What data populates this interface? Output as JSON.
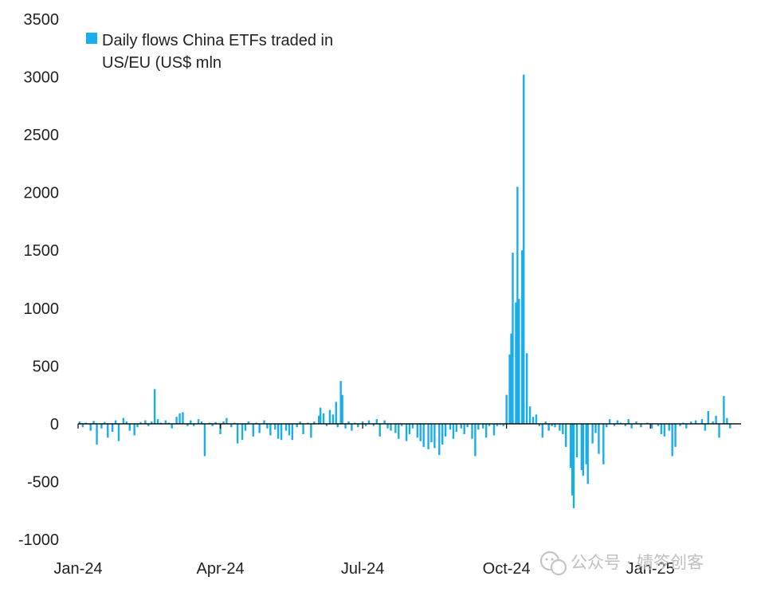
{
  "chart_data": {
    "type": "bar",
    "title": "",
    "xlabel": "",
    "ylabel": "",
    "ylim": [
      -1000,
      3500
    ],
    "y_ticks": [
      -1000,
      -500,
      0,
      500,
      1000,
      1500,
      2000,
      2500,
      3000,
      3500
    ],
    "y_tick_labels": [
      "-1000",
      "-500",
      "0",
      "500",
      "1000",
      "1500",
      "2000",
      "2500",
      "3000",
      "3500"
    ],
    "x_range": [
      "2024-01-01",
      "2025-02-28"
    ],
    "x_ticks": [
      {
        "label": "Jan-24",
        "date": "2024-01-01"
      },
      {
        "label": "Apr-24",
        "date": "2024-04-01"
      },
      {
        "label": "Jul-24",
        "date": "2024-07-01"
      },
      {
        "label": "Oct-24",
        "date": "2024-10-01"
      },
      {
        "label": "Jan-25",
        "date": "2025-01-01"
      }
    ],
    "grid": false,
    "legend": {
      "position": "top-left"
    },
    "series": [
      {
        "name": "Daily flows China ETFs traded in US/EU (US$ mln",
        "color": "#1aaee8",
        "points": [
          [
            "2024-01-02",
            20
          ],
          [
            "2024-01-04",
            -30
          ],
          [
            "2024-01-06",
            10
          ],
          [
            "2024-01-09",
            -60
          ],
          [
            "2024-01-11",
            25
          ],
          [
            "2024-01-13",
            -180
          ],
          [
            "2024-01-16",
            -40
          ],
          [
            "2024-01-18",
            15
          ],
          [
            "2024-01-20",
            -120
          ],
          [
            "2024-01-23",
            -70
          ],
          [
            "2024-01-25",
            30
          ],
          [
            "2024-01-27",
            -150
          ],
          [
            "2024-01-30",
            50
          ],
          [
            "2024-02-01",
            20
          ],
          [
            "2024-02-03",
            -60
          ],
          [
            "2024-02-06",
            -100
          ],
          [
            "2024-02-08",
            -30
          ],
          [
            "2024-02-10",
            15
          ],
          [
            "2024-02-13",
            30
          ],
          [
            "2024-02-15",
            -20
          ],
          [
            "2024-02-17",
            20
          ],
          [
            "2024-02-19",
            300
          ],
          [
            "2024-02-21",
            40
          ],
          [
            "2024-02-23",
            10
          ],
          [
            "2024-02-26",
            30
          ],
          [
            "2024-02-28",
            10
          ],
          [
            "2024-03-01",
            -40
          ],
          [
            "2024-03-04",
            60
          ],
          [
            "2024-03-06",
            90
          ],
          [
            "2024-03-08",
            100
          ],
          [
            "2024-03-11",
            -20
          ],
          [
            "2024-03-13",
            30
          ],
          [
            "2024-03-15",
            -20
          ],
          [
            "2024-03-18",
            40
          ],
          [
            "2024-03-20",
            20
          ],
          [
            "2024-03-22",
            -280
          ],
          [
            "2024-03-25",
            10
          ],
          [
            "2024-03-27",
            -20
          ],
          [
            "2024-03-29",
            15
          ],
          [
            "2024-04-01",
            -90
          ],
          [
            "2024-04-03",
            20
          ],
          [
            "2024-04-05",
            50
          ],
          [
            "2024-04-08",
            -30
          ],
          [
            "2024-04-10",
            10
          ],
          [
            "2024-04-12",
            -170
          ],
          [
            "2024-04-15",
            -140
          ],
          [
            "2024-04-17",
            -60
          ],
          [
            "2024-04-19",
            20
          ],
          [
            "2024-04-22",
            -110
          ],
          [
            "2024-04-24",
            10
          ],
          [
            "2024-04-26",
            -80
          ],
          [
            "2024-04-29",
            30
          ],
          [
            "2024-05-01",
            -40
          ],
          [
            "2024-05-03",
            -100
          ],
          [
            "2024-05-06",
            -50
          ],
          [
            "2024-05-08",
            -130
          ],
          [
            "2024-05-10",
            -140
          ],
          [
            "2024-05-13",
            -60
          ],
          [
            "2024-05-15",
            -100
          ],
          [
            "2024-05-17",
            -140
          ],
          [
            "2024-05-20",
            -30
          ],
          [
            "2024-05-22",
            20
          ],
          [
            "2024-05-24",
            -90
          ],
          [
            "2024-05-27",
            10
          ],
          [
            "2024-05-29",
            -120
          ],
          [
            "2024-05-31",
            20
          ],
          [
            "2024-06-03",
            70
          ],
          [
            "2024-06-04",
            140
          ],
          [
            "2024-06-06",
            90
          ],
          [
            "2024-06-08",
            -20
          ],
          [
            "2024-06-10",
            120
          ],
          [
            "2024-06-12",
            80
          ],
          [
            "2024-06-14",
            190
          ],
          [
            "2024-06-15",
            -30
          ],
          [
            "2024-06-17",
            370
          ],
          [
            "2024-06-18",
            250
          ],
          [
            "2024-06-20",
            -40
          ],
          [
            "2024-06-22",
            20
          ],
          [
            "2024-06-24",
            -60
          ],
          [
            "2024-06-26",
            10
          ],
          [
            "2024-06-28",
            -30
          ],
          [
            "2024-07-01",
            20
          ],
          [
            "2024-07-03",
            -20
          ],
          [
            "2024-07-05",
            30
          ],
          [
            "2024-07-08",
            -20
          ],
          [
            "2024-07-10",
            40
          ],
          [
            "2024-07-12",
            -110
          ],
          [
            "2024-07-15",
            30
          ],
          [
            "2024-07-17",
            -40
          ],
          [
            "2024-07-19",
            -60
          ],
          [
            "2024-07-22",
            -80
          ],
          [
            "2024-07-24",
            -130
          ],
          [
            "2024-07-26",
            -20
          ],
          [
            "2024-07-29",
            -150
          ],
          [
            "2024-07-31",
            -90
          ],
          [
            "2024-08-02",
            -40
          ],
          [
            "2024-08-05",
            -120
          ],
          [
            "2024-08-07",
            -150
          ],
          [
            "2024-08-09",
            -200
          ],
          [
            "2024-08-12",
            -220
          ],
          [
            "2024-08-14",
            -160
          ],
          [
            "2024-08-16",
            -210
          ],
          [
            "2024-08-19",
            -270
          ],
          [
            "2024-08-21",
            -180
          ],
          [
            "2024-08-23",
            -110
          ],
          [
            "2024-08-26",
            -50
          ],
          [
            "2024-08-28",
            -130
          ],
          [
            "2024-08-30",
            -70
          ],
          [
            "2024-09-02",
            -40
          ],
          [
            "2024-09-04",
            -90
          ],
          [
            "2024-09-06",
            -30
          ],
          [
            "2024-09-09",
            -130
          ],
          [
            "2024-09-11",
            -280
          ],
          [
            "2024-09-13",
            -50
          ],
          [
            "2024-09-16",
            -40
          ],
          [
            "2024-09-18",
            -120
          ],
          [
            "2024-09-20",
            -20
          ],
          [
            "2024-09-23",
            -100
          ],
          [
            "2024-09-25",
            -20
          ],
          [
            "2024-09-27",
            -10
          ],
          [
            "2024-09-29",
            -20
          ],
          [
            "2024-10-01",
            250
          ],
          [
            "2024-10-03",
            600
          ],
          [
            "2024-10-04",
            780
          ],
          [
            "2024-10-05",
            1480
          ],
          [
            "2024-10-07",
            1050
          ],
          [
            "2024-10-08",
            2050
          ],
          [
            "2024-10-09",
            1080
          ],
          [
            "2024-10-11",
            1500
          ],
          [
            "2024-10-12",
            3020
          ],
          [
            "2024-10-14",
            610
          ],
          [
            "2024-10-16",
            150
          ],
          [
            "2024-10-18",
            60
          ],
          [
            "2024-10-20",
            80
          ],
          [
            "2024-10-22",
            -20
          ],
          [
            "2024-10-24",
            -120
          ],
          [
            "2024-10-26",
            20
          ],
          [
            "2024-10-28",
            -60
          ],
          [
            "2024-10-30",
            -20
          ],
          [
            "2024-11-01",
            -30
          ],
          [
            "2024-11-04",
            -60
          ],
          [
            "2024-11-06",
            -90
          ],
          [
            "2024-11-08",
            -200
          ],
          [
            "2024-11-11",
            -380
          ],
          [
            "2024-11-12",
            -620
          ],
          [
            "2024-11-13",
            -730
          ],
          [
            "2024-11-15",
            -290
          ],
          [
            "2024-11-18",
            -400
          ],
          [
            "2024-11-19",
            -450
          ],
          [
            "2024-11-21",
            -350
          ],
          [
            "2024-11-22",
            -520
          ],
          [
            "2024-11-25",
            -170
          ],
          [
            "2024-11-27",
            -80
          ],
          [
            "2024-11-29",
            -260
          ],
          [
            "2024-12-02",
            -350
          ],
          [
            "2024-12-04",
            -30
          ],
          [
            "2024-12-06",
            40
          ],
          [
            "2024-12-09",
            -20
          ],
          [
            "2024-12-11",
            30
          ],
          [
            "2024-12-13",
            10
          ],
          [
            "2024-12-16",
            -20
          ],
          [
            "2024-12-18",
            40
          ],
          [
            "2024-12-20",
            -40
          ],
          [
            "2024-12-23",
            20
          ],
          [
            "2024-12-26",
            -30
          ],
          [
            "2024-12-30",
            10
          ],
          [
            "2025-01-02",
            -40
          ],
          [
            "2025-01-06",
            -20
          ],
          [
            "2025-01-08",
            -90
          ],
          [
            "2025-01-10",
            -110
          ],
          [
            "2025-01-13",
            -60
          ],
          [
            "2025-01-15",
            -280
          ],
          [
            "2025-01-17",
            -200
          ],
          [
            "2025-01-20",
            -20
          ],
          [
            "2025-01-22",
            10
          ],
          [
            "2025-01-24",
            -40
          ],
          [
            "2025-01-27",
            20
          ],
          [
            "2025-01-30",
            30
          ],
          [
            "2025-02-03",
            40
          ],
          [
            "2025-02-05",
            -60
          ],
          [
            "2025-02-07",
            110
          ],
          [
            "2025-02-10",
            20
          ],
          [
            "2025-02-12",
            70
          ],
          [
            "2025-02-14",
            -120
          ],
          [
            "2025-02-17",
            240
          ],
          [
            "2025-02-19",
            50
          ],
          [
            "2025-02-21",
            -40
          ]
        ]
      }
    ]
  },
  "watermark": {
    "text": "公众号 · 婧笒创客",
    "icon": "wechat-official-account-icon"
  }
}
